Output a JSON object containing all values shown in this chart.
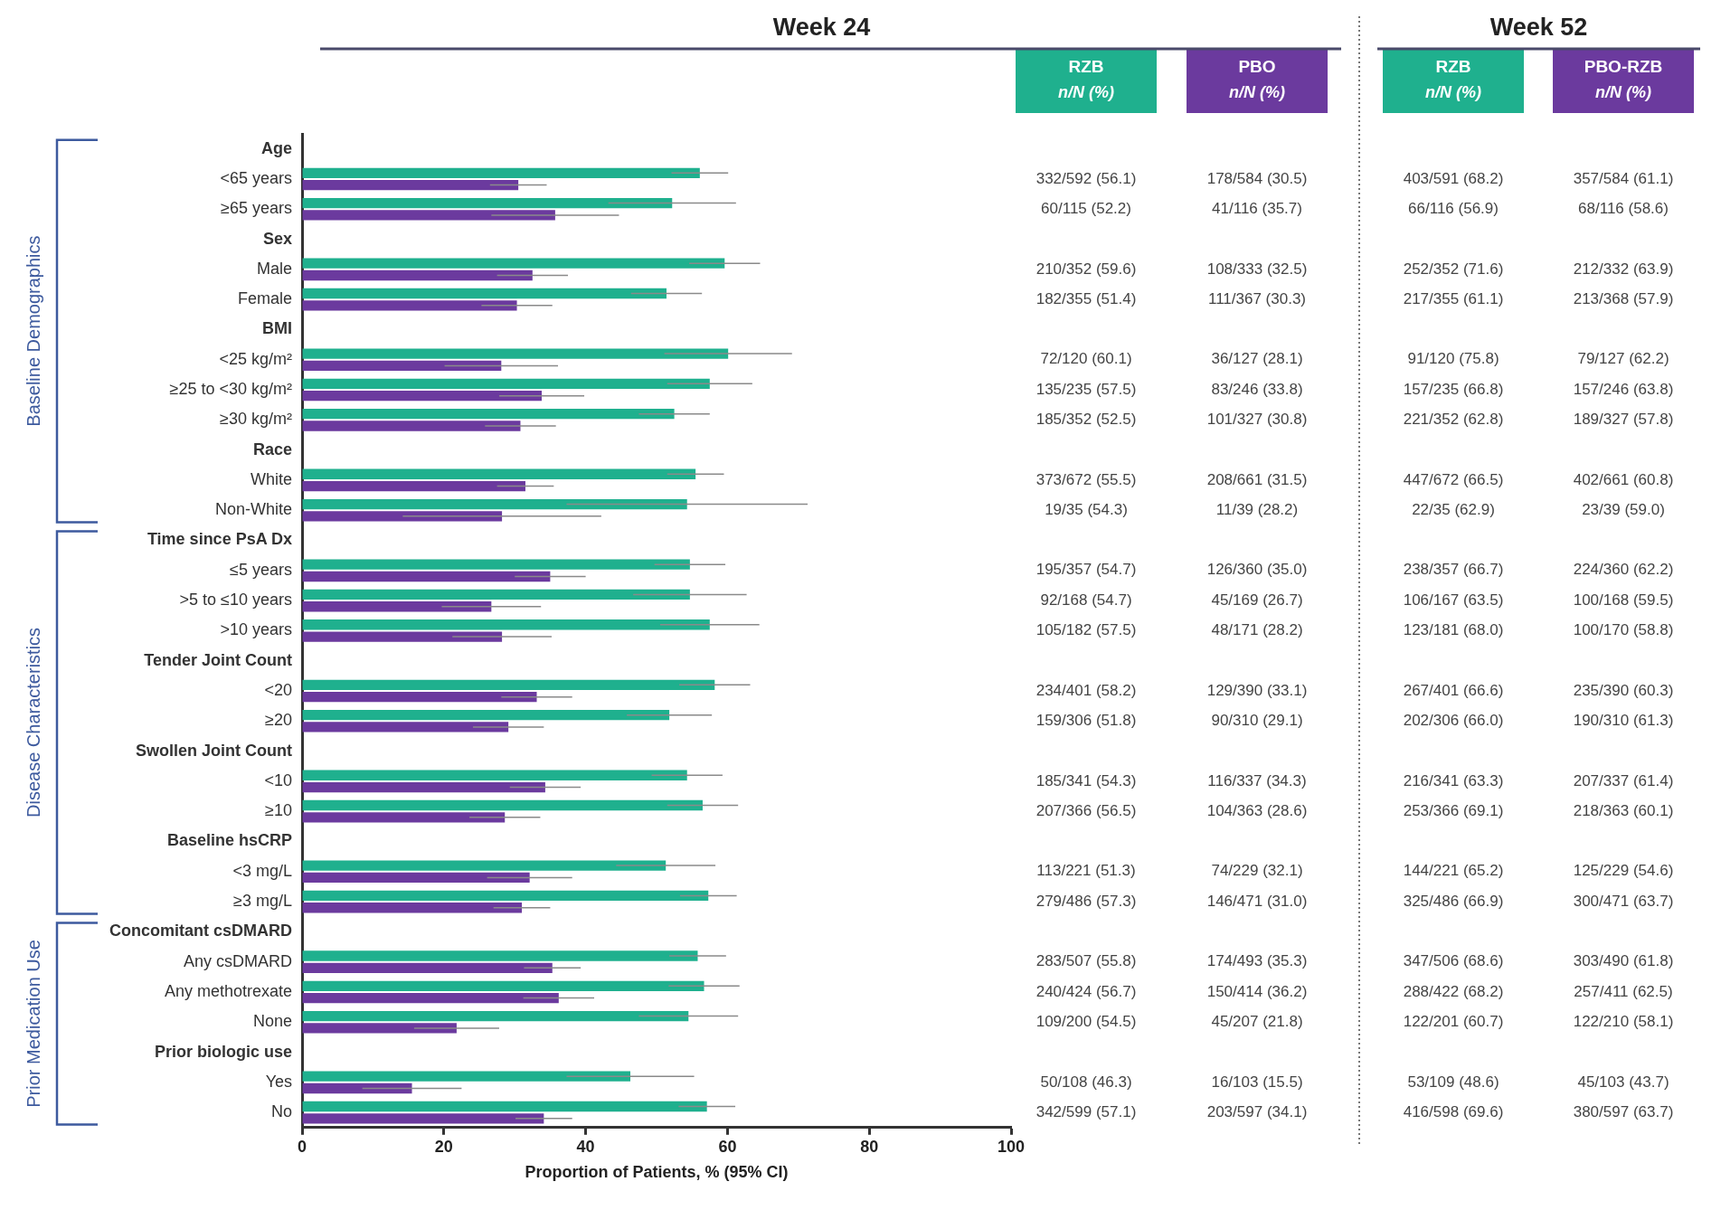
{
  "chart_data": {
    "type": "bar",
    "orientation": "horizontal",
    "title": "Week 24",
    "xlabel": "Proportion of Patients, % (95% CI)",
    "categories": [
      "Age",
      "<65 years",
      "≥65 years",
      "Sex",
      "Male",
      "Female",
      "BMI",
      "<25 kg/m²",
      "≥25 to <30 kg/m²",
      "≥30 kg/m²",
      "Race",
      "White",
      "Non-White",
      "Time since PsA Dx",
      "≤5 years",
      ">5 to ≤10 years",
      ">10 years",
      "Tender Joint Count",
      "<20",
      "≥20",
      "Swollen Joint Count",
      "<10",
      "≥10",
      "Baseline hsCRP",
      "<3 mg/L",
      "≥3 mg/L",
      "Concomitant csDMARD",
      "Any csDMARD",
      "Any methotrexate",
      "None",
      "Prior biologic use",
      "Yes",
      "No"
    ],
    "series": [
      {
        "name": "RZB",
        "color": "#1fb08e",
        "values": [
          null,
          56.1,
          52.2,
          null,
          59.6,
          51.4,
          null,
          60.1,
          57.5,
          52.5,
          null,
          55.5,
          54.3,
          null,
          54.7,
          54.7,
          57.5,
          null,
          58.2,
          51.8,
          null,
          54.3,
          56.5,
          null,
          51.3,
          57.3,
          null,
          55.8,
          56.7,
          54.5,
          null,
          46.3,
          57.1
        ],
        "errors": [
          null,
          4,
          9,
          null,
          5,
          5,
          null,
          9,
          6,
          5,
          null,
          4,
          17,
          null,
          5,
          8,
          7,
          null,
          5,
          6,
          null,
          5,
          5,
          null,
          7,
          4,
          null,
          4,
          5,
          7,
          null,
          9,
          4
        ],
        "value_labels": [
          null,
          "332/592 (56.1)",
          "60/115 (52.2)",
          null,
          "210/352 (59.6)",
          "182/355 (51.4)",
          null,
          "72/120 (60.1)",
          "135/235 (57.5)",
          "185/352 (52.5)",
          null,
          "373/672 (55.5)",
          "19/35 (54.3)",
          null,
          "195/357 (54.7)",
          "92/168 (54.7)",
          "105/182 (57.5)",
          null,
          "234/401 (58.2)",
          "159/306 (51.8)",
          null,
          "185/341 (54.3)",
          "207/366 (56.5)",
          null,
          "113/221 (51.3)",
          "279/486 (57.3)",
          null,
          "283/507 (55.8)",
          "240/424 (56.7)",
          "109/200 (54.5)",
          null,
          "50/108 (46.3)",
          "342/599 (57.1)"
        ]
      },
      {
        "name": "PBO",
        "color": "#6b3a9e",
        "values": [
          null,
          30.5,
          35.7,
          null,
          32.5,
          30.3,
          null,
          28.1,
          33.8,
          30.8,
          null,
          31.5,
          28.2,
          null,
          35.0,
          26.7,
          28.2,
          null,
          33.1,
          29.1,
          null,
          34.3,
          28.6,
          null,
          32.1,
          31.0,
          null,
          35.3,
          36.2,
          21.8,
          null,
          15.5,
          34.1
        ],
        "errors": [
          null,
          4,
          9,
          null,
          5,
          5,
          null,
          8,
          6,
          5,
          null,
          4,
          14,
          null,
          5,
          7,
          7,
          null,
          5,
          5,
          null,
          5,
          5,
          null,
          6,
          4,
          null,
          4,
          5,
          6,
          null,
          7,
          4
        ],
        "value_labels": [
          null,
          "178/584 (30.5)",
          "41/116 (35.7)",
          null,
          "108/333 (32.5)",
          "111/367 (30.3)",
          null,
          "36/127 (28.1)",
          "83/246 (33.8)",
          "101/327 (30.8)",
          null,
          "208/661 (31.5)",
          "11/39 (28.2)",
          null,
          "126/360 (35.0)",
          "45/169 (26.7)",
          "48/171 (28.2)",
          null,
          "129/390 (33.1)",
          "90/310 (29.1)",
          null,
          "116/337 (34.3)",
          "104/363 (28.6)",
          null,
          "74/229 (32.1)",
          "146/471 (31.0)",
          null,
          "174/493 (35.3)",
          "150/414 (36.2)",
          "45/207 (21.8)",
          null,
          "16/103 (15.5)",
          "203/597 (34.1)"
        ]
      }
    ],
    "xlim": [
      0,
      100
    ],
    "xticks": [
      0,
      20,
      40,
      60,
      80,
      100
    ],
    "grid": false,
    "legend": false,
    "annotations": [
      "n/N (%)",
      "Week 52",
      "PBO-RZB",
      "Baseline Demographics",
      "Disease Characteristics",
      "Prior Medication Use",
      "403/591 (68.2)",
      "357/584 (61.1)",
      "66/116 (56.9)",
      "68/116 (58.6)",
      "252/352 (71.6)",
      "212/332 (63.9)",
      "217/355 (61.1)",
      "213/368 (57.9)",
      "91/120 (75.8)",
      "79/127 (62.2)",
      "157/235 (66.8)",
      "157/246 (63.8)",
      "221/352 (62.8)",
      "189/327 (57.8)",
      "447/672 (66.5)",
      "402/661 (60.8)",
      "22/35 (62.9)",
      "23/39 (59.0)",
      "238/357 (66.7)",
      "224/360 (62.2)",
      "106/167 (63.5)",
      "100/168 (59.5)",
      "123/181 (68.0)",
      "100/170 (58.8)",
      "267/401 (66.6)",
      "235/390 (60.3)",
      "202/306 (66.0)",
      "190/310 (61.3)",
      "216/341 (63.3)",
      "207/337 (61.4)",
      "253/366 (69.1)",
      "218/363 (60.1)",
      "144/221 (65.2)",
      "125/229 (54.6)",
      "325/486 (66.9)",
      "300/471 (63.7)",
      "347/506 (68.6)",
      "303/490 (61.8)",
      "288/422 (68.2)",
      "257/411 (62.5)",
      "122/201 (60.7)",
      "122/210 (58.1)",
      "53/109 (48.6)",
      "45/103 (43.7)",
      "416/598 (69.6)",
      "380/597 (63.7)"
    ]
  }
}
